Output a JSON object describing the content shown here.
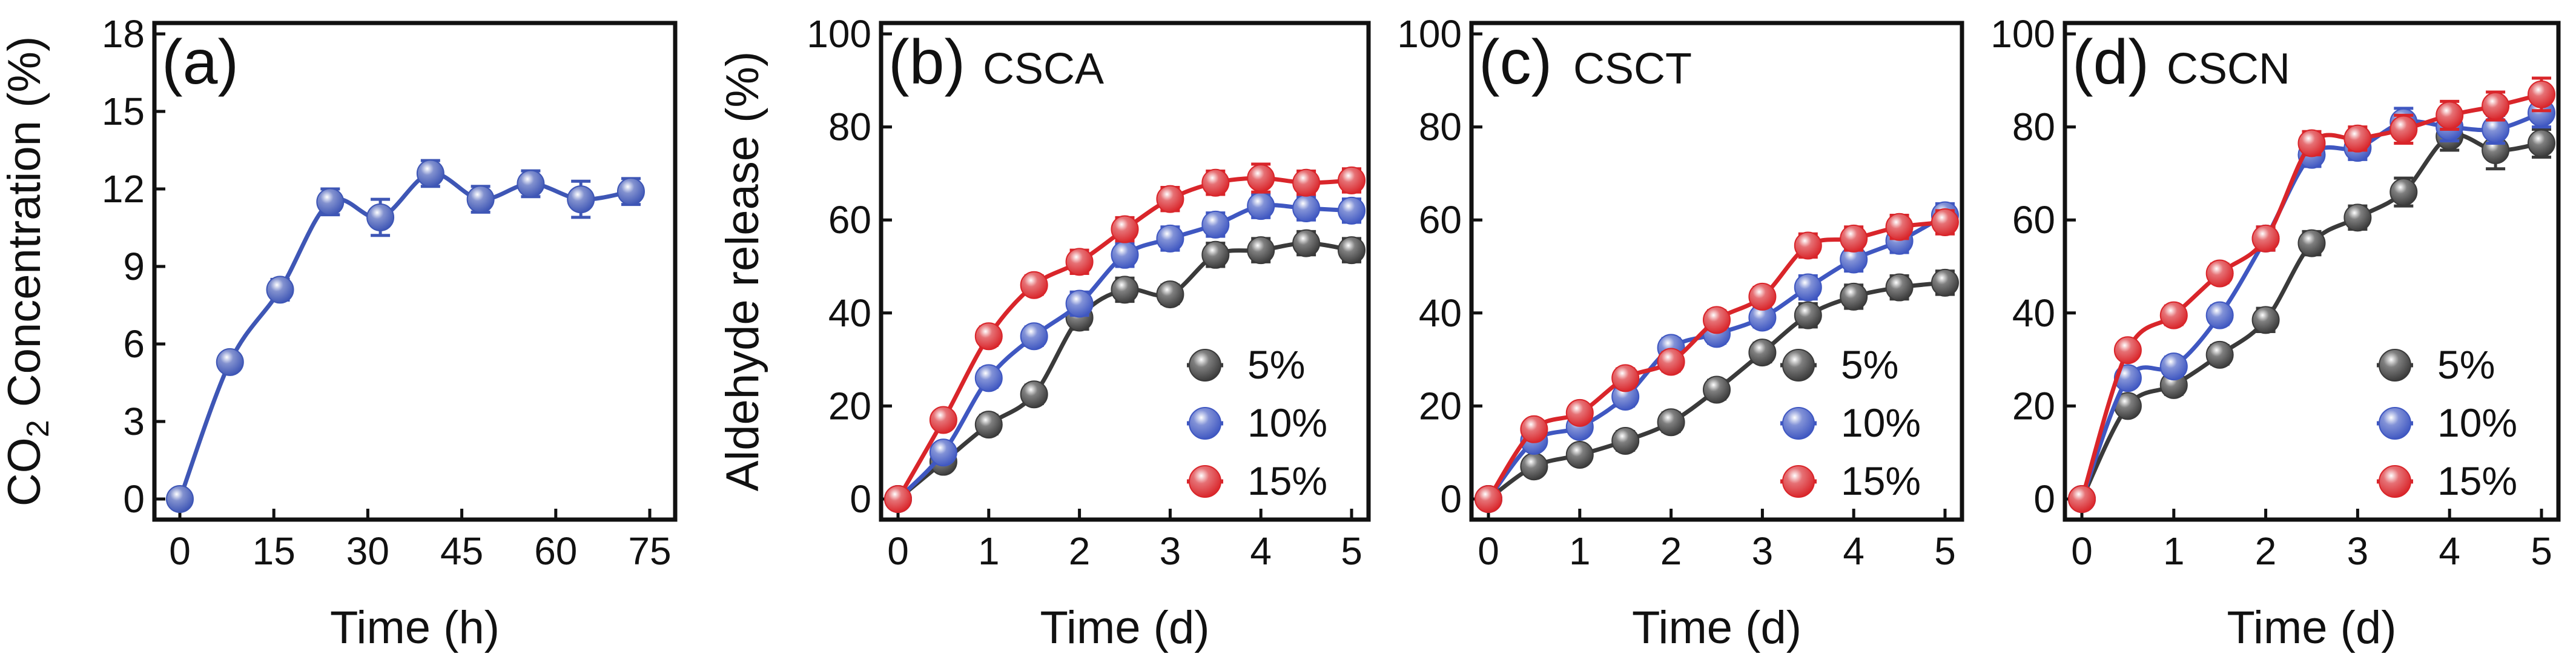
{
  "chart_data": [
    {
      "type": "line",
      "panel": "(a)",
      "name": "",
      "xlabel": "Time (h)",
      "ylabel_parts": [
        "CO",
        "2",
        " Concentration (%)"
      ],
      "xlim": [
        0,
        75
      ],
      "ylim": [
        0,
        18
      ],
      "xticks": [
        0,
        15,
        30,
        45,
        60,
        75
      ],
      "yticks": [
        0,
        3,
        6,
        9,
        12,
        15,
        18
      ],
      "legend": false,
      "series": [
        {
          "name": "CO2",
          "color": "#3e56b5",
          "x": [
            0,
            8,
            16,
            24,
            32,
            40,
            48,
            56,
            64,
            72
          ],
          "values": [
            0,
            5.3,
            8.1,
            11.5,
            10.9,
            12.6,
            11.6,
            12.2,
            11.6,
            11.9
          ],
          "err": [
            0.3,
            0.3,
            0.4,
            0.5,
            0.7,
            0.5,
            0.5,
            0.5,
            0.7,
            0.5
          ]
        }
      ]
    },
    {
      "type": "line",
      "panel": "(b)",
      "name": "CSCA",
      "xlabel": "Time (d)",
      "ylabel": "Aldehyde release (%)",
      "xlim": [
        0,
        5
      ],
      "ylim": [
        0,
        100
      ],
      "xticks": [
        0,
        1,
        2,
        3,
        4,
        5
      ],
      "yticks": [
        0,
        20,
        40,
        60,
        80,
        100
      ],
      "legend": true,
      "series": [
        {
          "name": "5%",
          "color": "#3a3a3a",
          "x": [
            0,
            0.5,
            1,
            1.5,
            2,
            2.5,
            3,
            3.5,
            4,
            4.5,
            5
          ],
          "values": [
            0,
            8,
            16,
            22.5,
            39,
            45,
            44,
            52.5,
            53.5,
            55,
            53.5
          ],
          "err": [
            1,
            1.5,
            2,
            2,
            2.5,
            2.5,
            2,
            2.5,
            2.5,
            2.5,
            2.5
          ]
        },
        {
          "name": "10%",
          "color": "#3f57c1",
          "x": [
            0,
            0.5,
            1,
            1.5,
            2,
            2.5,
            3,
            3.5,
            4,
            4.5,
            5
          ],
          "values": [
            0,
            10,
            26,
            35,
            42,
            52.5,
            56,
            59,
            63,
            62.5,
            62
          ],
          "err": [
            1,
            1.5,
            2,
            2,
            2.5,
            2.5,
            2.5,
            2.5,
            2.5,
            2.5,
            2.5
          ]
        },
        {
          "name": "15%",
          "color": "#d9252a",
          "x": [
            0,
            0.5,
            1,
            1.5,
            2,
            2.5,
            3,
            3.5,
            4,
            4.5,
            5
          ],
          "values": [
            0,
            17,
            35,
            46,
            51,
            58,
            64.5,
            68,
            69,
            68,
            68.5
          ],
          "err": [
            1,
            1.5,
            2,
            2,
            2.5,
            2.5,
            2.5,
            2.5,
            3,
            2.5,
            2.5
          ]
        }
      ]
    },
    {
      "type": "line",
      "panel": "(c)",
      "name": "CSCT",
      "xlabel": "Time (d)",
      "ylabel": "",
      "xlim": [
        0,
        5
      ],
      "ylim": [
        0,
        100
      ],
      "xticks": [
        0,
        1,
        2,
        3,
        4,
        5
      ],
      "yticks": [
        0,
        20,
        40,
        60,
        80,
        100
      ],
      "legend": true,
      "series": [
        {
          "name": "5%",
          "color": "#3a3a3a",
          "x": [
            0,
            0.5,
            1,
            1.5,
            2,
            2.5,
            3,
            3.5,
            4,
            4.5,
            5
          ],
          "values": [
            0,
            7,
            9.5,
            12.5,
            16.5,
            23.5,
            31.5,
            39.5,
            43.5,
            45.5,
            46.5
          ],
          "err": [
            1,
            1.5,
            1.5,
            2,
            2,
            2,
            2,
            2.5,
            2.5,
            2.5,
            2.5
          ]
        },
        {
          "name": "10%",
          "color": "#3f57c1",
          "x": [
            0,
            0.5,
            1,
            1.5,
            2,
            2.5,
            3,
            3.5,
            4,
            4.5,
            5
          ],
          "values": [
            0,
            12.5,
            15.5,
            22,
            32.5,
            35.5,
            39,
            45.5,
            51.5,
            55.5,
            61
          ],
          "err": [
            1,
            1.5,
            1.5,
            2,
            2,
            2,
            2,
            2.5,
            2.5,
            2.5,
            2.5
          ]
        },
        {
          "name": "15%",
          "color": "#d9252a",
          "x": [
            0,
            0.5,
            1,
            1.5,
            2,
            2.5,
            3,
            3.5,
            4,
            4.5,
            5
          ],
          "values": [
            0,
            15,
            18.5,
            26,
            29.5,
            38.5,
            43.5,
            54.5,
            56,
            58.5,
            59.5
          ],
          "err": [
            1,
            1.5,
            1.5,
            2,
            2,
            2,
            2,
            2.5,
            2.5,
            2.5,
            2.5
          ]
        }
      ]
    },
    {
      "type": "line",
      "panel": "(d)",
      "name": "CSCN",
      "xlabel": "Time (d)",
      "ylabel": "",
      "xlim": [
        0,
        5
      ],
      "ylim": [
        0,
        100
      ],
      "xticks": [
        0,
        1,
        2,
        3,
        4,
        5
      ],
      "yticks": [
        0,
        20,
        40,
        60,
        80,
        100
      ],
      "legend": true,
      "series": [
        {
          "name": "5%",
          "color": "#3a3a3a",
          "x": [
            0,
            0.5,
            1,
            1.5,
            2,
            2.5,
            3,
            3.5,
            4,
            4.5,
            5
          ],
          "values": [
            0,
            20,
            24.5,
            31,
            38.5,
            55,
            60.5,
            66,
            78,
            75,
            76.5
          ],
          "err": [
            1,
            1.5,
            2,
            2,
            2.5,
            2.5,
            2.5,
            3,
            3,
            4,
            3
          ]
        },
        {
          "name": "10%",
          "color": "#3f57c1",
          "x": [
            0,
            0.5,
            1,
            1.5,
            2,
            2.5,
            3,
            3.5,
            4,
            4.5,
            5
          ],
          "values": [
            0,
            26,
            28.5,
            39.5,
            56,
            74,
            75.5,
            81,
            80,
            79.5,
            83
          ],
          "err": [
            1,
            1.5,
            2,
            2,
            2.5,
            2.5,
            2.5,
            3,
            3,
            3,
            3
          ]
        },
        {
          "name": "15%",
          "color": "#d9252a",
          "x": [
            0,
            0.5,
            1,
            1.5,
            2,
            2.5,
            3,
            3.5,
            4,
            4.5,
            5
          ],
          "values": [
            0,
            32,
            39.5,
            48.5,
            56,
            76.5,
            77.5,
            79.5,
            82.5,
            84.5,
            87
          ],
          "err": [
            1,
            1.5,
            2,
            2,
            2.5,
            2.5,
            2.5,
            3,
            3,
            3,
            3.5
          ]
        }
      ]
    }
  ]
}
